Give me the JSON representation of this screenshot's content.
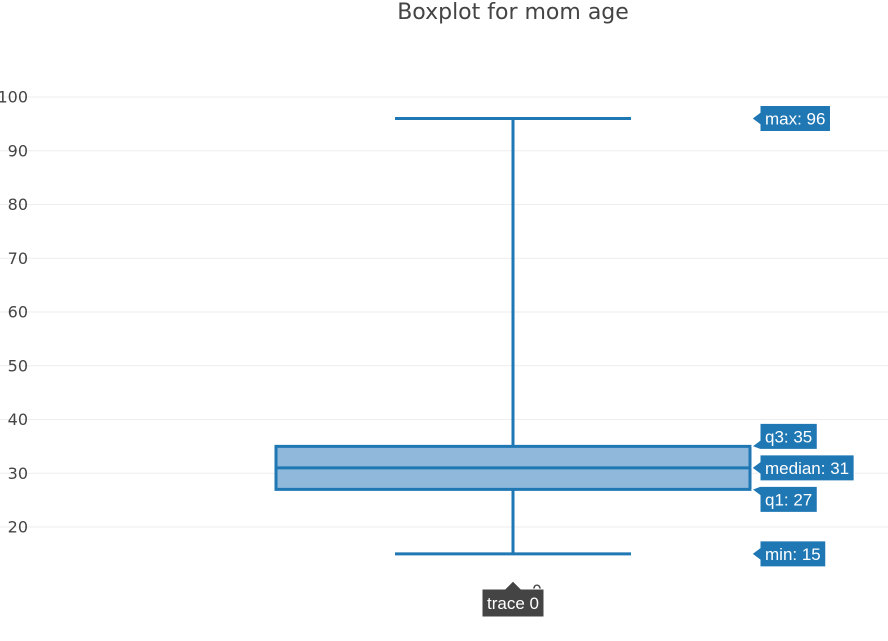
{
  "chart_data": {
    "type": "box",
    "title": "Boxplot for mom age",
    "xlabel": "",
    "ylabel": "",
    "x_ticks": [
      "0"
    ],
    "ylim": [
      11,
      104
    ],
    "y_ticks": [
      20,
      30,
      40,
      50,
      60,
      70,
      80,
      90,
      100
    ],
    "grid": true,
    "series": [
      {
        "name": "trace 0",
        "min": 15,
        "q1": 27,
        "median": 31,
        "q3": 35,
        "max": 96
      }
    ],
    "hover_labels": {
      "max": "max: 96",
      "q3": "q3: 35",
      "median": "median: 31",
      "q1": "q1: 27",
      "min": "min: 15",
      "trace": "trace 0"
    },
    "colors": {
      "box_line": "#1f77b4",
      "box_fill": "#8fb8da",
      "label_bg": "#1f77b4",
      "trace_label_bg": "#444444",
      "grid": "#eeeeee",
      "text": "#444444"
    }
  }
}
